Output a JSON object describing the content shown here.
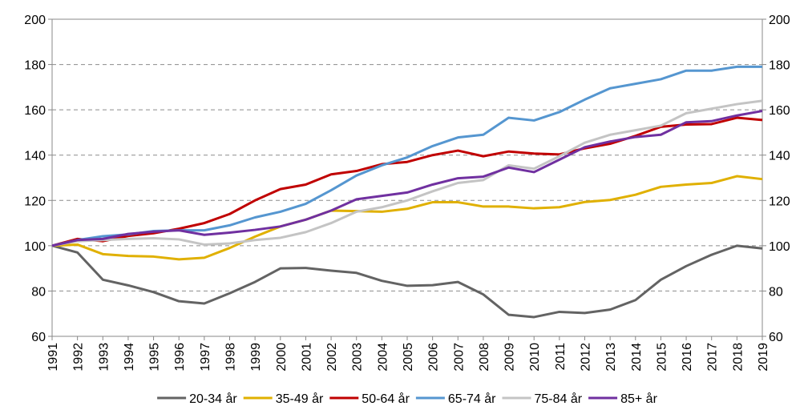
{
  "chart_data": {
    "type": "line",
    "categories": [
      "1991",
      "1992",
      "1993",
      "1994",
      "1995",
      "1996",
      "1997",
      "1998",
      "1999",
      "2000",
      "2001",
      "2002",
      "2003",
      "2004",
      "2005",
      "2006",
      "2007",
      "2008",
      "2009",
      "2010",
      "2011",
      "2012",
      "2013",
      "2014",
      "2015",
      "2016",
      "2017",
      "2018",
      "2019"
    ],
    "series": [
      {
        "name": "20-34 år",
        "color": "#636363",
        "values": [
          100,
          97,
          85,
          82.5,
          79.5,
          75.5,
          74.5,
          79,
          84,
          90,
          90.2,
          89,
          88,
          84.5,
          82.3,
          82.6,
          84,
          78.5,
          69.5,
          68.5,
          70.8,
          70.3,
          71.8,
          76,
          85,
          91,
          96,
          100,
          98.8
        ]
      },
      {
        "name": "35-49 år",
        "color": "#e0b000",
        "values": [
          100,
          100.5,
          96.3,
          95.5,
          95.2,
          94,
          94.7,
          99,
          104,
          108.5,
          111.5,
          115.5,
          115.3,
          115,
          116.3,
          119.2,
          119.2,
          117.3,
          117.3,
          116.5,
          117,
          119.3,
          120.2,
          122.5,
          126,
          127,
          127.7,
          130.7,
          129.4
        ]
      },
      {
        "name": "50-64 år",
        "color": "#c00000",
        "values": [
          100,
          103,
          102,
          104.3,
          105.5,
          107.5,
          110,
          114,
          120,
          125,
          127,
          131.5,
          133,
          136,
          137,
          140,
          142,
          139.5,
          141.6,
          140.7,
          140.3,
          143,
          145,
          148.5,
          152.5,
          153.5,
          153.7,
          156.5,
          155.5
        ]
      },
      {
        "name": "65-74 år",
        "color": "#5596d0",
        "values": [
          100,
          102.5,
          104.2,
          105,
          106.5,
          106.8,
          106.8,
          109,
          112.5,
          115,
          118.5,
          124.5,
          131,
          135.5,
          139,
          144,
          147.8,
          149,
          156.5,
          155.3,
          159,
          164.5,
          169.5,
          171.5,
          173.5,
          177.3,
          177.3,
          179,
          179
        ]
      },
      {
        "name": "75-84 år",
        "color": "#c4c4c4",
        "values": [
          100,
          102,
          102.5,
          103,
          103.3,
          102.8,
          100.5,
          101,
          102.5,
          103.5,
          106,
          110,
          115,
          117,
          120,
          124,
          127.7,
          129,
          135.5,
          134,
          139.5,
          145.5,
          149,
          151,
          153,
          158.5,
          160.5,
          162.5,
          164
        ]
      },
      {
        "name": "85+ år",
        "color": "#7030a0",
        "values": [
          100,
          102.5,
          103,
          105.2,
          106.2,
          106.8,
          104.8,
          105.8,
          107,
          108.5,
          111.5,
          115.5,
          120.5,
          122,
          123.5,
          127,
          129.8,
          130.5,
          134.5,
          132.5,
          138,
          143.5,
          146,
          148,
          149,
          154.5,
          155,
          157.5,
          159.5
        ]
      }
    ],
    "ylim": [
      60,
      200
    ],
    "yticks": [
      60,
      80,
      100,
      120,
      140,
      160,
      180,
      200
    ],
    "y2lim": [
      60,
      200
    ],
    "y2ticks": [
      60,
      80,
      100,
      120,
      140,
      160,
      180,
      200
    ],
    "grid": true,
    "legend": "bottom"
  }
}
